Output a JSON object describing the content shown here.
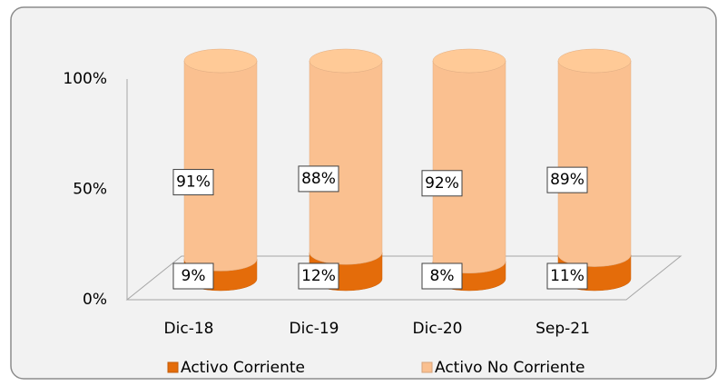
{
  "chart_data": {
    "type": "cylinder_stacked",
    "categories": [
      "Dic-18",
      "Dic-19",
      "Dic-20",
      "Sep-21"
    ],
    "series": [
      {
        "name": "Activo Corriente",
        "color": "#e46c0a",
        "values": [
          9,
          12,
          8,
          11
        ],
        "value_labels": [
          "9%",
          "12%",
          "8%",
          "11%"
        ]
      },
      {
        "name": "Activo No Corriente",
        "color": "#fac090",
        "values": [
          91,
          88,
          92,
          89
        ],
        "value_labels": [
          "91%",
          "88%",
          "92%",
          "89%"
        ]
      }
    ],
    "ylim": [
      0,
      100
    ],
    "yticks": [
      {
        "value": 0,
        "label": "0%"
      },
      {
        "value": 50,
        "label": "50%"
      },
      {
        "value": 100,
        "label": "100%"
      }
    ],
    "legend": "bottom"
  }
}
